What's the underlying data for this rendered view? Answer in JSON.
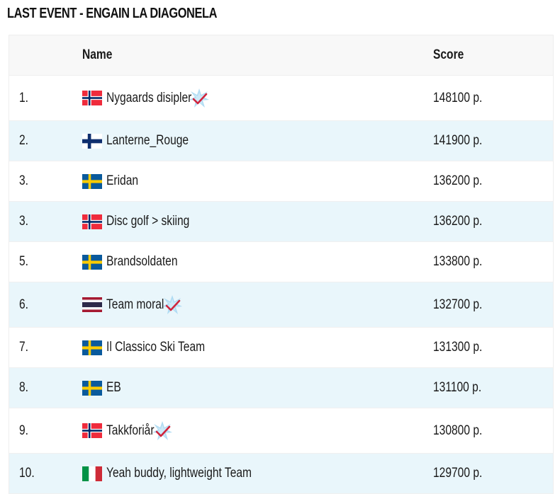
{
  "title": "LAST EVENT - ENGAIN LA DIAGONELA",
  "table": {
    "headers": {
      "rank": "",
      "name": "Name",
      "score": "Score"
    },
    "rows": [
      {
        "rank": "1.",
        "flag": "norway",
        "name": "Nygaards disipler",
        "verified": true,
        "score": "148100 p."
      },
      {
        "rank": "2.",
        "flag": "finland",
        "name": "Lanterne_Rouge",
        "verified": false,
        "score": "141900 p."
      },
      {
        "rank": "3.",
        "flag": "sweden",
        "name": "Eridan",
        "verified": false,
        "score": "136200 p."
      },
      {
        "rank": "3.",
        "flag": "norway",
        "name": "Disc golf > skiing",
        "verified": false,
        "score": "136200 p."
      },
      {
        "rank": "5.",
        "flag": "sweden",
        "name": "Brandsoldaten",
        "verified": false,
        "score": "133800 p."
      },
      {
        "rank": "6.",
        "flag": "thailand",
        "name": "Team moral",
        "verified": true,
        "score": "132700 p."
      },
      {
        "rank": "7.",
        "flag": "sweden",
        "name": "Il Classico Ski Team",
        "verified": false,
        "score": "131300 p."
      },
      {
        "rank": "8.",
        "flag": "sweden",
        "name": "EB",
        "verified": false,
        "score": "131100 p."
      },
      {
        "rank": "9.",
        "flag": "norway",
        "name": "Takkforiår",
        "verified": true,
        "score": "130800 p."
      },
      {
        "rank": "10.",
        "flag": "italy",
        "name": "Yeah buddy, lightweight Team",
        "verified": false,
        "score": "129700 p."
      }
    ]
  },
  "colors": {
    "header_bg": "#f8f8f8",
    "row_alt_bg": "#e9f6fb",
    "badge_check": "#d0243c",
    "badge_star": "#a9d8f2"
  }
}
